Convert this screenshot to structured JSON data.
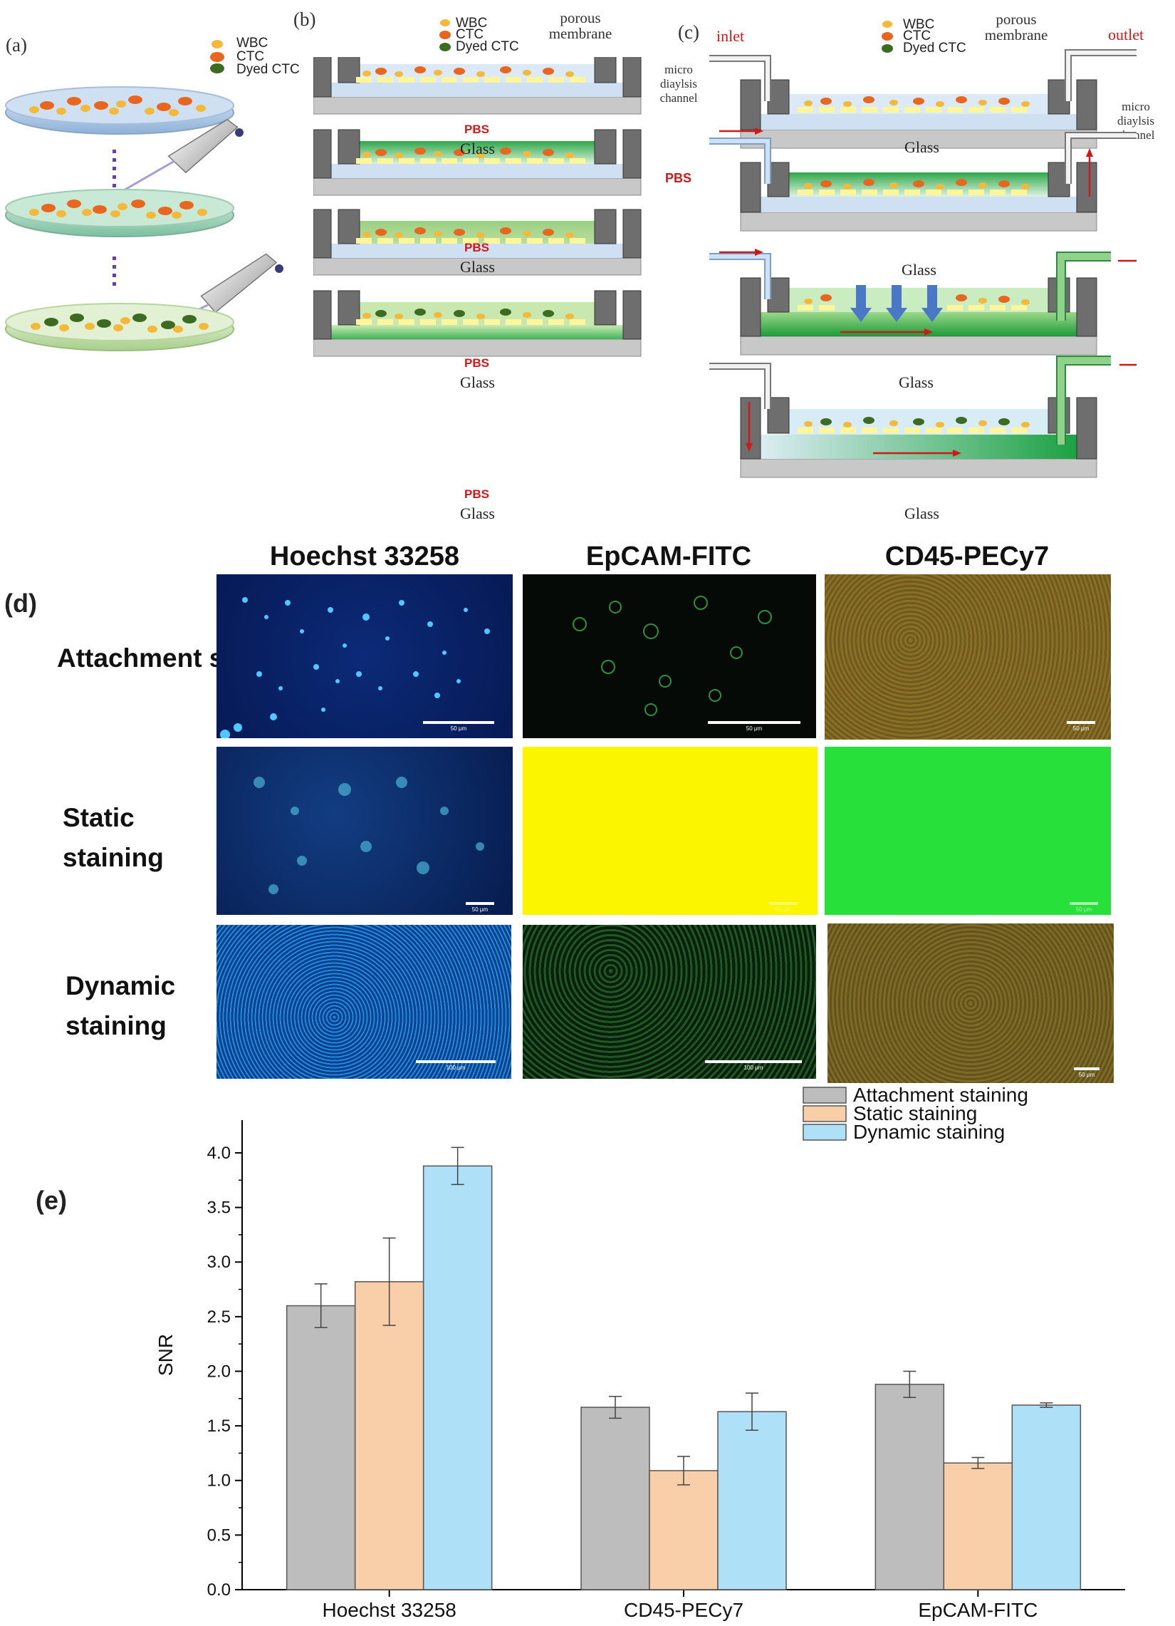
{
  "panel_a": {
    "label": "(a)",
    "legend": [
      "WBC",
      "CTC",
      "Dyed CTC"
    ]
  },
  "panel_b": {
    "label": "(b)",
    "legend": [
      "WBC",
      "CTC",
      "Dyed CTC"
    ],
    "porous_membrane": "porous membrane",
    "micro_dialysis": "micro diaylsis channel",
    "pbs": "PBS",
    "glass": "Glass"
  },
  "panel_c": {
    "label": "(c)",
    "legend": [
      "WBC",
      "CTC",
      "Dyed CTC"
    ],
    "inlet": "inlet",
    "outlet": "outlet",
    "porous_membrane": "porous membrane",
    "micro_dialysis": "micro diaylsis channel",
    "pbs": "PBS",
    "glass": "Glass"
  },
  "panel_d": {
    "label": "(d)",
    "columns": [
      "Hoechst 33258",
      "EpCAM-FITC",
      "CD45-PECy7"
    ],
    "rows": [
      "Attachment staining",
      "Static staining",
      "Dynamic staining"
    ],
    "scale_labels": [
      [
        "50 μm",
        "50 μm",
        "50 μm"
      ],
      [
        "50 μm",
        "50 μm",
        "50 μm"
      ],
      [
        "100 μm",
        "100 μm",
        "50 μm"
      ]
    ]
  },
  "panel_e": {
    "label": "(e)"
  },
  "colors": {
    "wbc": "#f5b93a",
    "ctc": "#e8661e",
    "dyed_ctc": "#3d6b22",
    "attachment": "#bdbdbd",
    "static": "#f9cfaa",
    "dynamic": "#aee0f7",
    "pbs_red": "#d01818",
    "arrow_red": "#d01818"
  },
  "chart_data": {
    "type": "bar",
    "title": "",
    "xlabel": "",
    "ylabel": "SNR",
    "ylim": [
      0.0,
      4.3
    ],
    "yticks": [
      "0.0",
      "0.5",
      "1.0",
      "1.5",
      "2.0",
      "2.5",
      "3.0",
      "3.5",
      "4.0"
    ],
    "categories": [
      "Hoechst 33258",
      "CD45-PECy7",
      "EpCAM-FITC"
    ],
    "legend_position": "top-right",
    "series": [
      {
        "name": "Attachment staining",
        "values": [
          2.6,
          1.67,
          1.88
        ],
        "errors": [
          0.2,
          0.1,
          0.12
        ],
        "color": "#bdbdbd"
      },
      {
        "name": "Static staining",
        "values": [
          2.82,
          1.09,
          1.16
        ],
        "errors": [
          0.4,
          0.13,
          0.05
        ],
        "color": "#f9cfaa"
      },
      {
        "name": "Dynamic staining",
        "values": [
          3.88,
          1.63,
          1.69
        ],
        "errors": [
          0.17,
          0.17,
          0.02
        ],
        "color": "#aee0f7"
      }
    ]
  }
}
